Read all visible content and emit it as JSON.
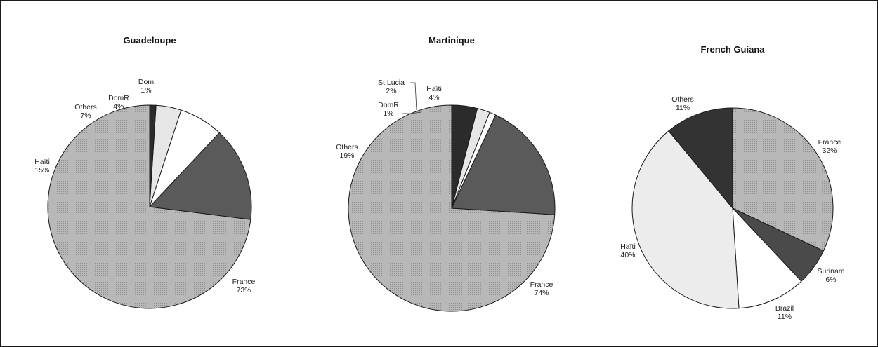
{
  "chart_data": [
    {
      "type": "pie",
      "title": "Guadeloupe",
      "slices": [
        {
          "label": "France",
          "value": 73,
          "pct": "73%",
          "color": "#b3b3b3"
        },
        {
          "label": "Haïti",
          "value": 15,
          "pct": "15%",
          "color": "#5a5a5a"
        },
        {
          "label": "Others",
          "value": 7,
          "pct": "7%",
          "color": "#ffffff"
        },
        {
          "label": "DomR",
          "value": 4,
          "pct": "4%",
          "color": "#e6e6e6"
        },
        {
          "label": "Dom",
          "value": 1,
          "pct": "1%",
          "color": "#2b2b2b"
        }
      ]
    },
    {
      "type": "pie",
      "title": "Martinique",
      "slices": [
        {
          "label": "France",
          "value": 74,
          "pct": "74%",
          "color": "#b3b3b3"
        },
        {
          "label": "Others",
          "value": 19,
          "pct": "19%",
          "color": "#5a5a5a"
        },
        {
          "label": "DomR",
          "value": 1,
          "pct": "1%",
          "color": "#ffffff"
        },
        {
          "label": "St Lucia",
          "value": 2,
          "pct": "2%",
          "color": "#e6e6e6"
        },
        {
          "label": "Haïti",
          "value": 4,
          "pct": "4%",
          "color": "#2b2b2b"
        }
      ]
    },
    {
      "type": "pie",
      "title": "French Guiana",
      "slices": [
        {
          "label": "France",
          "value": 32,
          "pct": "32%",
          "color": "#a8a8a8"
        },
        {
          "label": "Surinam",
          "value": 6,
          "pct": "6%",
          "color": "#4a4a4a"
        },
        {
          "label": "Brazil",
          "value": 11,
          "pct": "11%",
          "color": "#ffffff"
        },
        {
          "label": "Haïti",
          "value": 40,
          "pct": "40%",
          "color": "#ececec"
        },
        {
          "label": "Others",
          "value": 11,
          "pct": "11%",
          "color": "#333333"
        }
      ]
    }
  ]
}
